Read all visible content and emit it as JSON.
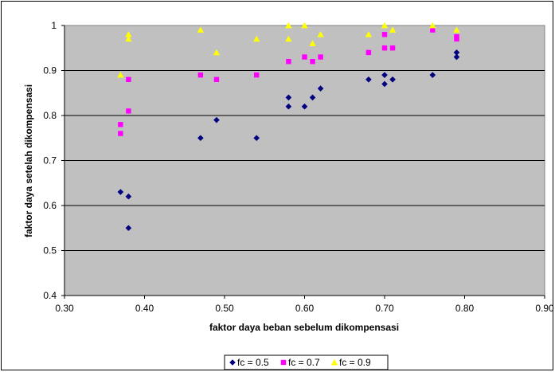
{
  "chart_data": {
    "type": "scatter",
    "xlabel": "faktor daya beban sebelum dikompensasi",
    "ylabel": "faktor daya setelah dikompensasi",
    "xlim": [
      0.3,
      0.9
    ],
    "ylim": [
      0.4,
      1.0
    ],
    "x_ticks": [
      "0.30",
      "0.40",
      "0.50",
      "0.60",
      "0.70",
      "0.80",
      "0.90"
    ],
    "y_ticks": [
      "0.4",
      "0.5",
      "0.6",
      "0.7",
      "0.8",
      "0.9",
      "1"
    ],
    "grid": true,
    "plot_background": "#c0c0c0",
    "legend_position": "bottom",
    "series": [
      {
        "name": "fc = 0.5",
        "marker": "diamond",
        "color": "#000080",
        "points": [
          [
            0.37,
            0.63
          ],
          [
            0.38,
            0.62
          ],
          [
            0.38,
            0.55
          ],
          [
            0.47,
            0.75
          ],
          [
            0.49,
            0.79
          ],
          [
            0.54,
            0.75
          ],
          [
            0.58,
            0.84
          ],
          [
            0.58,
            0.82
          ],
          [
            0.6,
            0.82
          ],
          [
            0.61,
            0.84
          ],
          [
            0.62,
            0.86
          ],
          [
            0.68,
            0.88
          ],
          [
            0.7,
            0.89
          ],
          [
            0.7,
            0.87
          ],
          [
            0.71,
            0.88
          ],
          [
            0.76,
            0.89
          ],
          [
            0.79,
            0.94
          ],
          [
            0.79,
            0.93
          ]
        ]
      },
      {
        "name": "fc = 0.7",
        "marker": "square",
        "color": "#ff00ff",
        "points": [
          [
            0.37,
            0.78
          ],
          [
            0.37,
            0.76
          ],
          [
            0.38,
            0.88
          ],
          [
            0.38,
            0.81
          ],
          [
            0.47,
            0.89
          ],
          [
            0.49,
            0.88
          ],
          [
            0.54,
            0.89
          ],
          [
            0.58,
            0.92
          ],
          [
            0.6,
            0.93
          ],
          [
            0.61,
            0.92
          ],
          [
            0.62,
            0.93
          ],
          [
            0.68,
            0.94
          ],
          [
            0.7,
            0.98
          ],
          [
            0.7,
            0.95
          ],
          [
            0.71,
            0.95
          ],
          [
            0.76,
            0.99
          ],
          [
            0.79,
            0.97
          ],
          [
            0.79,
            0.975
          ]
        ]
      },
      {
        "name": "fc = 0.9",
        "marker": "triangle",
        "color": "#ffff00",
        "points": [
          [
            0.37,
            0.89
          ],
          [
            0.38,
            0.98
          ],
          [
            0.38,
            0.97
          ],
          [
            0.47,
            0.99
          ],
          [
            0.49,
            0.94
          ],
          [
            0.54,
            0.97
          ],
          [
            0.58,
            1.0
          ],
          [
            0.58,
            0.97
          ],
          [
            0.6,
            1.0
          ],
          [
            0.61,
            0.96
          ],
          [
            0.62,
            0.98
          ],
          [
            0.68,
            0.98
          ],
          [
            0.7,
            1.0
          ],
          [
            0.71,
            0.99
          ],
          [
            0.76,
            1.0
          ],
          [
            0.79,
            0.99
          ]
        ]
      }
    ]
  }
}
